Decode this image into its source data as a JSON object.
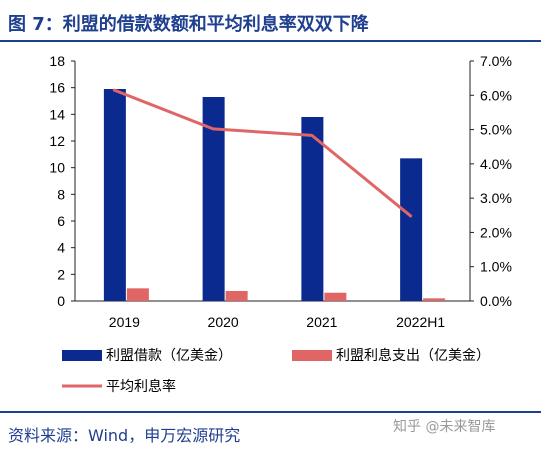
{
  "title": "图 7：利盟的借款数额和平均利息率双双下降",
  "source": "资料来源：Wind，申万宏源研究",
  "watermark": "知乎 @未来智库",
  "chart_data": {
    "type": "bar",
    "categories": [
      "2019",
      "2020",
      "2021",
      "2022H1"
    ],
    "series": [
      {
        "name": "利盟借款（亿美金）",
        "kind": "bar",
        "axis": "left",
        "color": "#0a2a8f",
        "values": [
          15.9,
          15.3,
          13.8,
          10.7
        ]
      },
      {
        "name": "利盟利息支出（亿美金）",
        "kind": "bar",
        "axis": "left",
        "color": "#e06666",
        "values": [
          0.95,
          0.75,
          0.62,
          0.2
        ]
      },
      {
        "name": "平均利息率",
        "kind": "line",
        "axis": "right",
        "color": "#e06666",
        "values": [
          0.0615,
          0.0502,
          0.0483,
          0.0248
        ]
      }
    ],
    "left_axis": {
      "ylim": [
        0,
        18
      ],
      "ticks": [
        "0",
        "2",
        "4",
        "6",
        "8",
        "10",
        "12",
        "14",
        "16",
        "18"
      ]
    },
    "right_axis": {
      "ylim": [
        0,
        0.07
      ],
      "ticks": [
        "0.0%",
        "1.0%",
        "2.0%",
        "3.0%",
        "4.0%",
        "5.0%",
        "6.0%",
        "7.0%"
      ]
    },
    "legend": "bottom",
    "grid": false
  }
}
